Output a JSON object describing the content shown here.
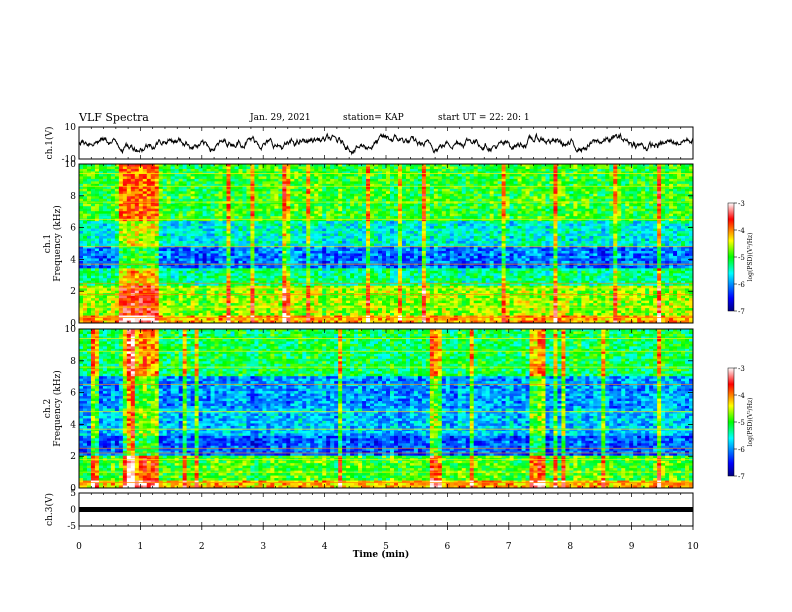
{
  "header": {
    "title": "VLF Spectra",
    "date": "Jan. 29, 2021",
    "station": "station= KAP",
    "start": "start  UT =   22: 20: 1"
  },
  "chart_data": [
    {
      "type": "line",
      "panel": "ch1",
      "ylabel": "ch.1(V)",
      "ylim": [
        -10,
        10
      ],
      "yticks": [
        "10",
        "-10"
      ],
      "xlim": [
        0,
        10
      ]
    },
    {
      "type": "heatmap",
      "panel": "spec1",
      "ylabel": "ch.1",
      "ylabel2": "Frequency (kHz)",
      "ylim": [
        0,
        10
      ],
      "yticks": [
        "0",
        "2",
        "4",
        "6",
        "8",
        "10"
      ],
      "xlim": [
        0,
        10
      ],
      "colorbar": {
        "label": "log(PSD)(V²/Hz)",
        "range": [
          -7,
          -3
        ],
        "ticks": [
          "-3",
          "-4",
          "-5",
          "-6",
          "-7"
        ]
      }
    },
    {
      "type": "heatmap",
      "panel": "spec2",
      "ylabel": "ch.2",
      "ylabel2": "Frequency (kHz)",
      "ylim": [
        0,
        10
      ],
      "yticks": [
        "0",
        "2",
        "4",
        "6",
        "8",
        "10"
      ],
      "xlim": [
        0,
        10
      ],
      "colorbar": {
        "label": "log(PSD)(V²/Hz)",
        "range": [
          -7,
          -3
        ],
        "ticks": [
          "-3",
          "-4",
          "-5",
          "-6",
          "-7"
        ]
      }
    },
    {
      "type": "line",
      "panel": "ch3",
      "ylabel": "ch.3(V)",
      "ylim": [
        -5,
        5
      ],
      "yticks": [
        "5",
        "0",
        "-5"
      ],
      "xlim": [
        0,
        10
      ],
      "xlabel": "Time (min)",
      "xticks": [
        "0",
        "1",
        "2",
        "3",
        "4",
        "5",
        "6",
        "7",
        "8",
        "9",
        "10"
      ]
    }
  ]
}
